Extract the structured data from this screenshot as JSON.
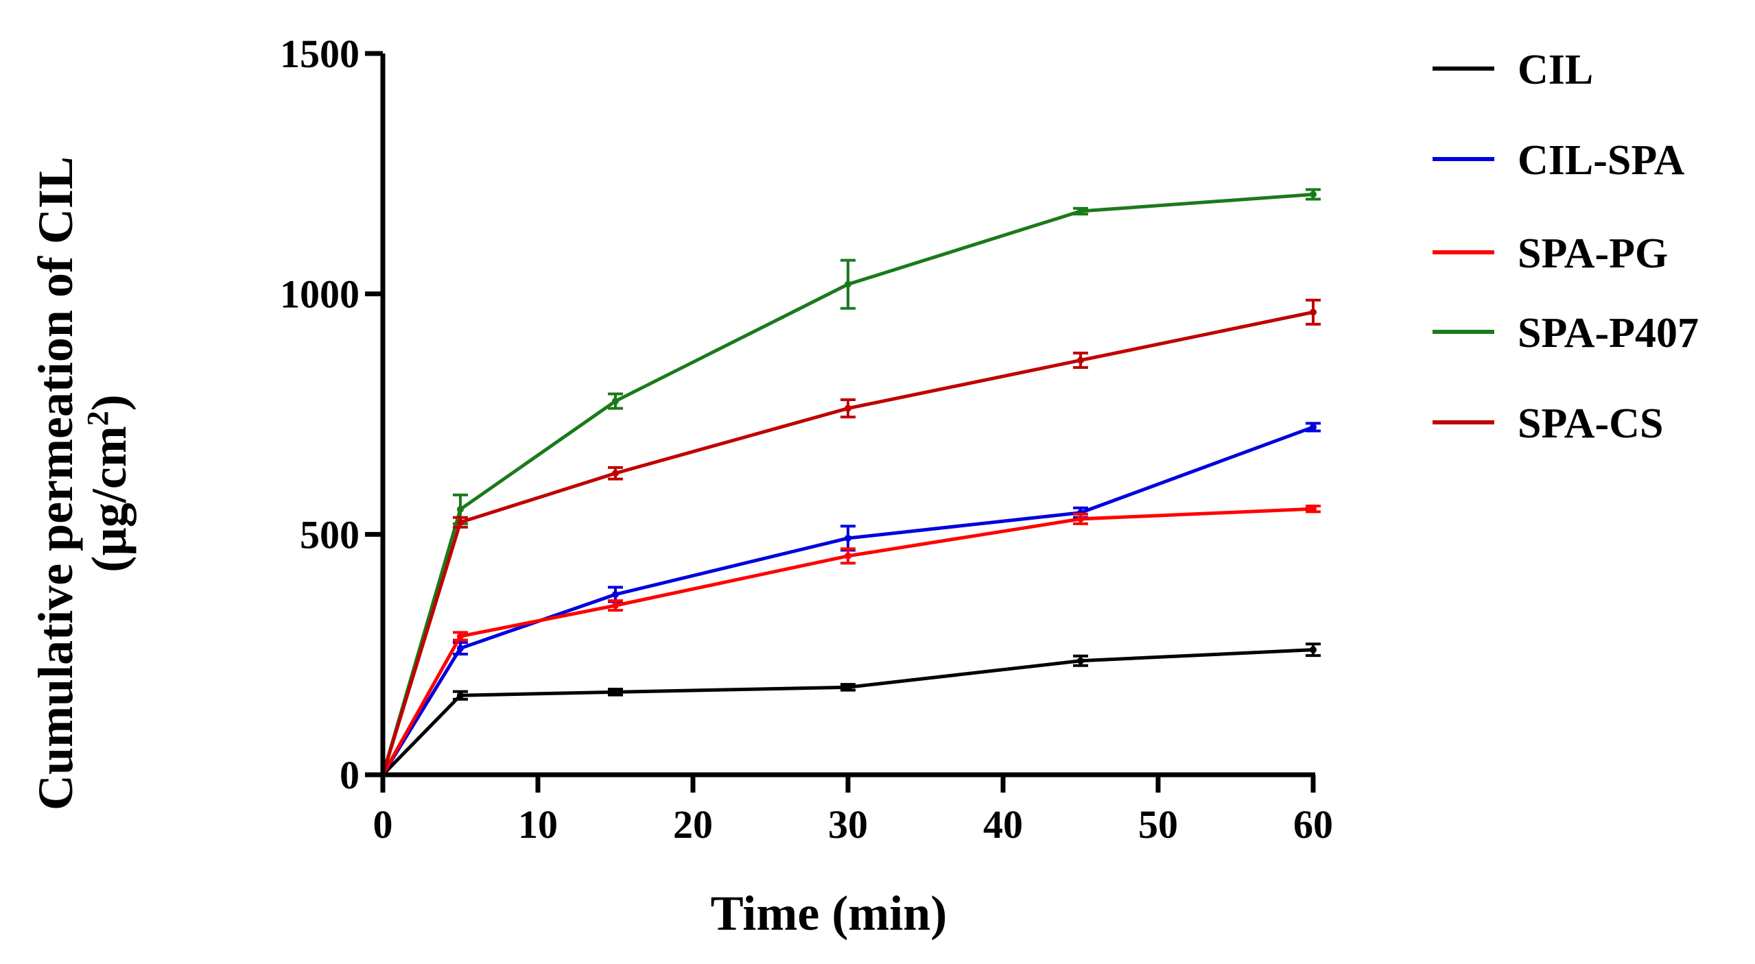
{
  "chart_data": {
    "type": "line",
    "title": "",
    "xlabel": "Time (min)",
    "ylabel_line1": "Cumulative permeation of CIL",
    "ylabel_unit_prefix": "(µg/cm",
    "ylabel_unit_sup": "2",
    "ylabel_unit_suffix": ")",
    "xlim": [
      0,
      60
    ],
    "ylim": [
      0,
      1500
    ],
    "x_ticks": [
      0,
      10,
      20,
      30,
      40,
      50,
      60
    ],
    "y_ticks": [
      0,
      500,
      1000,
      1500
    ],
    "x": [
      0,
      5,
      15,
      30,
      45,
      60
    ],
    "legend_position": "right",
    "series": [
      {
        "name": "CIL",
        "color": "#000000",
        "values": [
          0,
          165,
          172,
          182,
          237,
          260
        ],
        "errors": [
          0,
          8,
          6,
          6,
          10,
          12
        ]
      },
      {
        "name": "CIL-SPA",
        "color": "#0000dd",
        "values": [
          0,
          263,
          375,
          492,
          545,
          723
        ],
        "errors": [
          0,
          12,
          15,
          25,
          10,
          8
        ]
      },
      {
        "name": "SPA-PG",
        "color": "#ff0000",
        "values": [
          0,
          288,
          352,
          455,
          532,
          553
        ],
        "errors": [
          0,
          8,
          10,
          15,
          10,
          6
        ]
      },
      {
        "name": "SPA-P407",
        "color": "#1a7a1a",
        "values": [
          0,
          552,
          777,
          1020,
          1172,
          1207
        ],
        "errors": [
          0,
          30,
          15,
          50,
          6,
          10
        ]
      },
      {
        "name": "SPA-CS",
        "color": "#c00000",
        "values": [
          0,
          525,
          627,
          762,
          862,
          962
        ],
        "errors": [
          0,
          10,
          12,
          18,
          15,
          25
        ]
      }
    ]
  }
}
